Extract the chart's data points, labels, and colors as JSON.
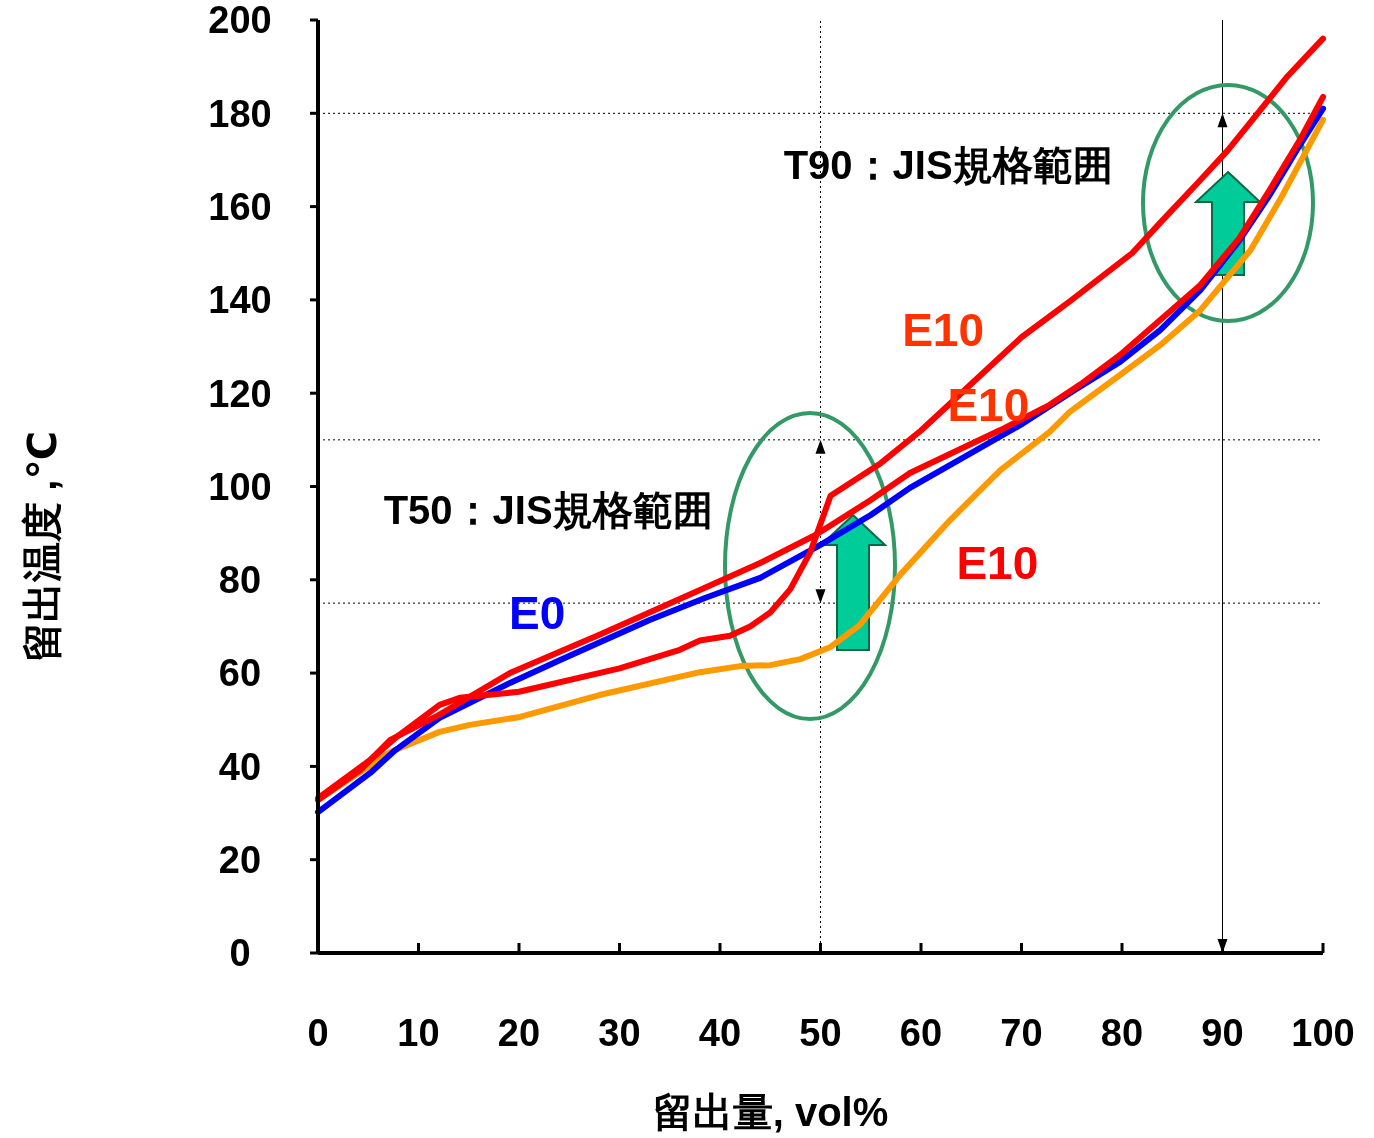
{
  "chart_data": {
    "type": "line",
    "xlabel": "留出量, vol%",
    "ylabel": "留出温度 ,℃",
    "xlim": [
      0,
      100
    ],
    "xticks": [
      0,
      10,
      20,
      30,
      40,
      50,
      60,
      70,
      80,
      90,
      100
    ],
    "ylim": [
      0,
      200
    ],
    "yticks": [
      0,
      20,
      40,
      60,
      80,
      100,
      120,
      140,
      160,
      180,
      200
    ],
    "grid": false,
    "marker": "none",
    "line_style": "solid",
    "series": [
      {
        "color": "#ff9900",
        "x": [
          0,
          7.2,
          12.1,
          15.1,
          20.1,
          28,
          38,
          42,
          45,
          48,
          51,
          53.9,
          57.9,
          62.9,
          67.9,
          72.8,
          74.8,
          79.8,
          83.8,
          87.8,
          92.8,
          95.7,
          100
        ],
        "values": [
          32.8,
          43.1,
          47.4,
          48.9,
          50.6,
          55.3,
          60.2,
          61.5,
          61.7,
          63,
          65.6,
          70.3,
          81,
          92.8,
          103.5,
          111.7,
          116,
          123.9,
          130.3,
          137.8,
          150.7,
          161.4,
          178.6
        ]
      },
      {
        "color": "#0000ff",
        "x": [
          0,
          5.2,
          7.7,
          12.1,
          19.1,
          24.1,
          33,
          38.5,
          44,
          50,
          55,
          58.9,
          69.9,
          75.3,
          79.8,
          83.8,
          87.8,
          91.7,
          94.7,
          97.7,
          100
        ],
        "values": [
          30.2,
          38.6,
          43.5,
          50.4,
          57.9,
          62.8,
          71.4,
          76.1,
          80.4,
          87.5,
          93.9,
          99.7,
          113.2,
          120.7,
          126.7,
          133.5,
          142.1,
          152.8,
          162.5,
          173.2,
          181
        ]
      },
      {
        "color": "#ff0000",
        "x": [
          0,
          4.2,
          7.2,
          12,
          19.1,
          28,
          38,
          44,
          49.5,
          55,
          58.9,
          67.9,
          72.8,
          75.8,
          79.8,
          83.8,
          87.8,
          91.7,
          94.7,
          97.7,
          100
        ],
        "values": [
          32.8,
          39.2,
          45.7,
          51,
          60,
          68.2,
          77.8,
          83.6,
          89.6,
          97.1,
          102.9,
          112.1,
          117.5,
          121.8,
          128.2,
          135.7,
          143.2,
          153.3,
          163.6,
          174.3,
          183.5
        ]
      },
      {
        "color": "#ff0000",
        "x": [
          0,
          5.2,
          7.7,
          12.1,
          14.1,
          20,
          30,
          36,
          38,
          41,
          43,
          45,
          47,
          49,
          51,
          56,
          60,
          64,
          67,
          70,
          75,
          81,
          84,
          87.5,
          90.5,
          93.5,
          96.5,
          100
        ],
        "values": [
          33.2,
          41.4,
          46.1,
          53.2,
          54.7,
          56,
          61,
          65,
          67,
          68,
          70,
          73,
          78,
          86,
          98,
          105,
          112,
          120,
          126,
          132,
          140,
          150,
          157,
          165,
          172,
          180,
          188,
          196
        ]
      }
    ],
    "ref_lines": [
      {
        "axis": "y",
        "value": 180,
        "line_style": "dotted"
      },
      {
        "axis": "y",
        "value": 110,
        "line_style": "dotted"
      },
      {
        "axis": "y",
        "value": 75,
        "line_style": "dotted"
      },
      {
        "axis": "x",
        "value": 50,
        "line_style": "dotted"
      },
      {
        "axis": "x",
        "value": 90,
        "line_style": "solid"
      }
    ],
    "annotations": [
      "T90：JIS規格範囲",
      "T50：JIS規格範囲",
      "E0",
      "E10",
      "E10",
      "E10"
    ]
  }
}
